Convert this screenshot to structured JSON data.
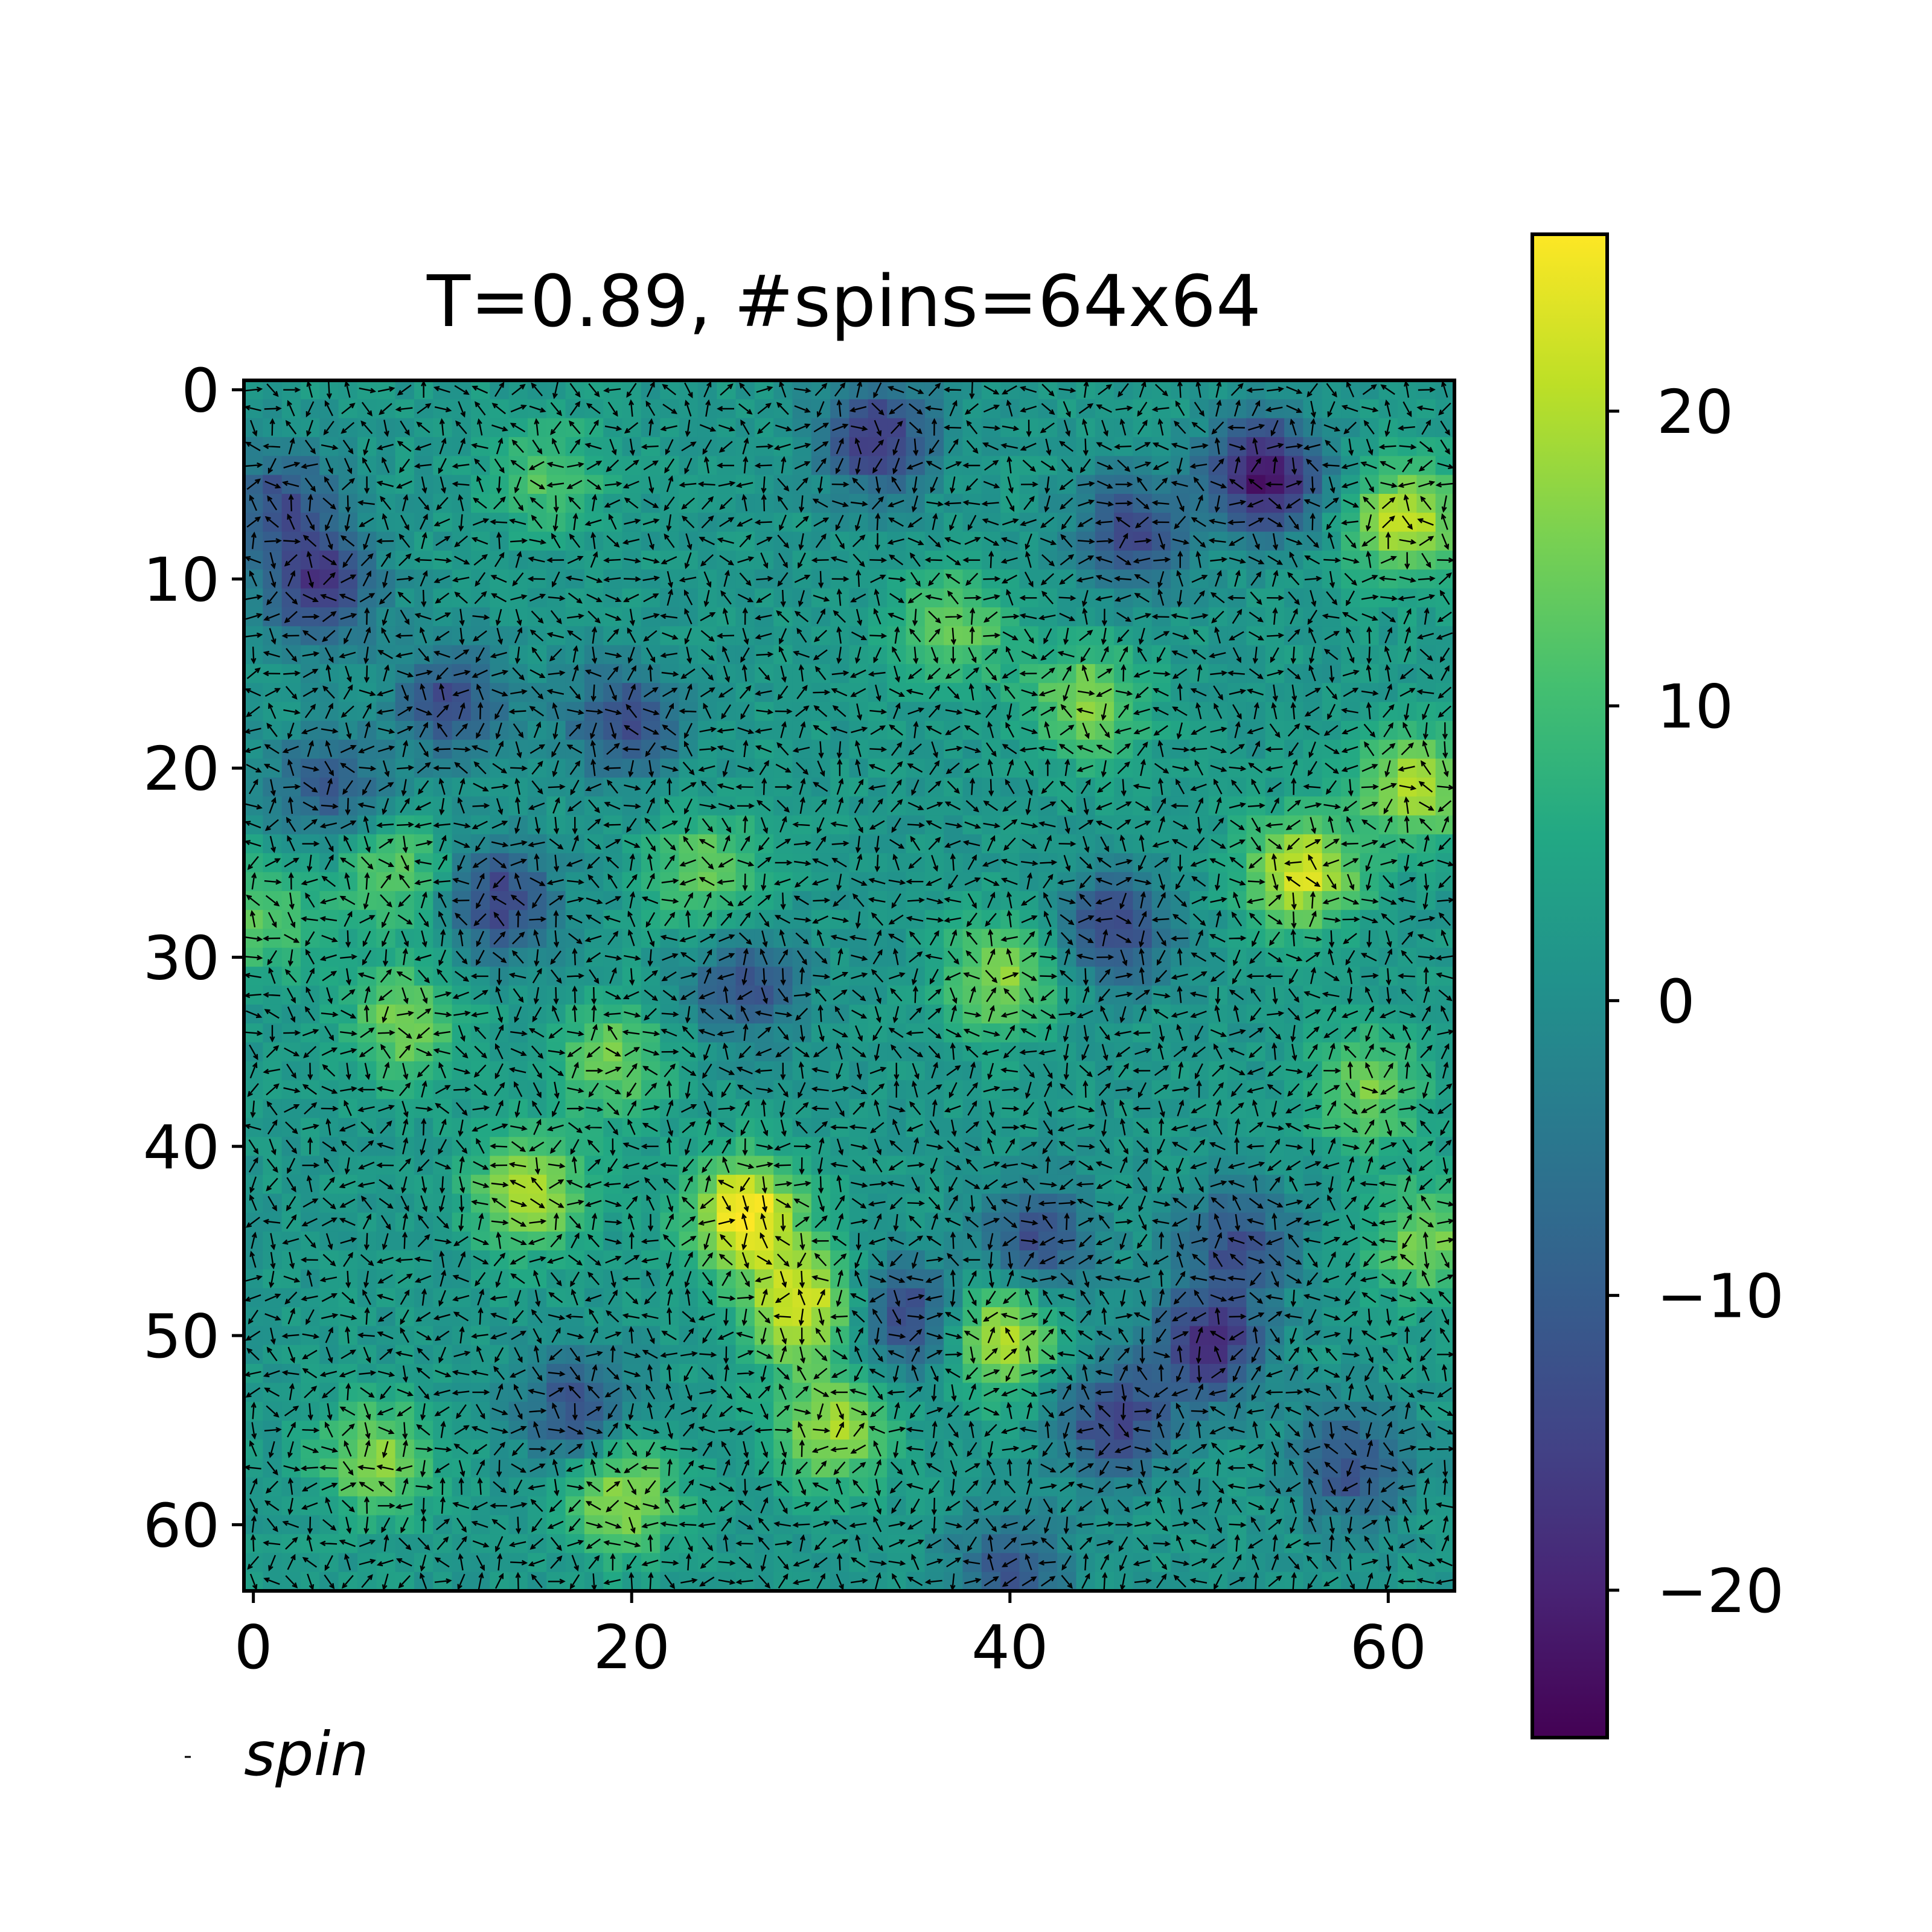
{
  "chart_data": {
    "type": "heatmap",
    "title": "T=0.89, #spins=64x64",
    "xlabel": "",
    "ylabel": "",
    "grid_size": [
      64,
      64
    ],
    "x_ticks": [
      0,
      20,
      40,
      60
    ],
    "y_ticks": [
      0,
      10,
      20,
      30,
      40,
      50,
      60
    ],
    "xlim": [
      -0.5,
      63.5
    ],
    "ylim": [
      63.5,
      -0.5
    ],
    "y_axis_inverted": true,
    "colormap": "viridis",
    "colorbar": {
      "range": [
        -25,
        26
      ],
      "ticks": [
        20,
        10,
        0,
        -10,
        -20
      ],
      "tick_labels": [
        "20",
        "10",
        "0",
        "−10",
        "−20"
      ]
    },
    "field_features": [
      {
        "x": 53.5,
        "y": 4.5,
        "value": -25
      },
      {
        "x": 33,
        "y": 2.5,
        "value": -19
      },
      {
        "x": 3.5,
        "y": 10.5,
        "value": -19
      },
      {
        "x": 46.5,
        "y": 7.5,
        "value": -16
      },
      {
        "x": 1.5,
        "y": 6,
        "value": -14
      },
      {
        "x": 13,
        "y": 27,
        "value": -17
      },
      {
        "x": 19.5,
        "y": 17.5,
        "value": -15
      },
      {
        "x": 10.5,
        "y": 16.5,
        "value": -15
      },
      {
        "x": 45.5,
        "y": 28.5,
        "value": -16
      },
      {
        "x": 26,
        "y": 31.5,
        "value": -14
      },
      {
        "x": 34.5,
        "y": 49,
        "value": -17
      },
      {
        "x": 50.5,
        "y": 50.5,
        "value": -20
      },
      {
        "x": 45.5,
        "y": 54.5,
        "value": -17
      },
      {
        "x": 17,
        "y": 54,
        "value": -14
      },
      {
        "x": 41.5,
        "y": 45,
        "value": -15
      },
      {
        "x": 52,
        "y": 45,
        "value": -14
      },
      {
        "x": 58,
        "y": 57,
        "value": -14
      },
      {
        "x": 4,
        "y": 21,
        "value": -13
      },
      {
        "x": 40,
        "y": 62.5,
        "value": -13
      },
      {
        "x": 26,
        "y": 43.5,
        "value": 25
      },
      {
        "x": 29,
        "y": 48.5,
        "value": 22
      },
      {
        "x": 61,
        "y": 7,
        "value": 20
      },
      {
        "x": 61.5,
        "y": 21,
        "value": 18
      },
      {
        "x": 55.5,
        "y": 25.5,
        "value": 21
      },
      {
        "x": 39.5,
        "y": 50,
        "value": 19
      },
      {
        "x": 14.5,
        "y": 42.5,
        "value": 18
      },
      {
        "x": 30.5,
        "y": 55,
        "value": 17
      },
      {
        "x": 19.5,
        "y": 58.5,
        "value": 17
      },
      {
        "x": 6.5,
        "y": 56.5,
        "value": 15
      },
      {
        "x": 44,
        "y": 16.5,
        "value": 15
      },
      {
        "x": 37,
        "y": 12.5,
        "value": 13
      },
      {
        "x": 8,
        "y": 33.5,
        "value": 14
      },
      {
        "x": 39.5,
        "y": 31,
        "value": 15
      },
      {
        "x": 19,
        "y": 35.5,
        "value": 13
      },
      {
        "x": 24,
        "y": 25.5,
        "value": 13
      },
      {
        "x": 7.5,
        "y": 25.5,
        "value": 12
      },
      {
        "x": 62,
        "y": 45,
        "value": 14
      },
      {
        "x": 59,
        "y": 37,
        "value": 13
      },
      {
        "x": 15.5,
        "y": 4.5,
        "value": 10
      },
      {
        "x": 0.5,
        "y": 28,
        "value": 11
      }
    ],
    "quiver": {
      "spacing": 1,
      "color": "#000000",
      "legend_label": "spin"
    }
  }
}
